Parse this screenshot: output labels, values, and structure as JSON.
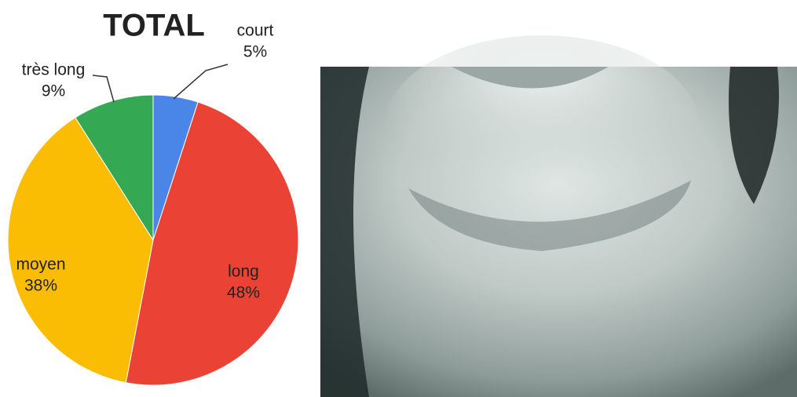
{
  "chart_data": {
    "type": "pie",
    "title": "TOTAL",
    "categories": [
      "court",
      "long",
      "moyen",
      "très long"
    ],
    "values": [
      5,
      48,
      38,
      9
    ],
    "value_labels": [
      "5%",
      "48%",
      "38%",
      "9%"
    ],
    "colors": [
      "#4a86e8",
      "#ea4335",
      "#fbbc04",
      "#34a853"
    ]
  }
}
